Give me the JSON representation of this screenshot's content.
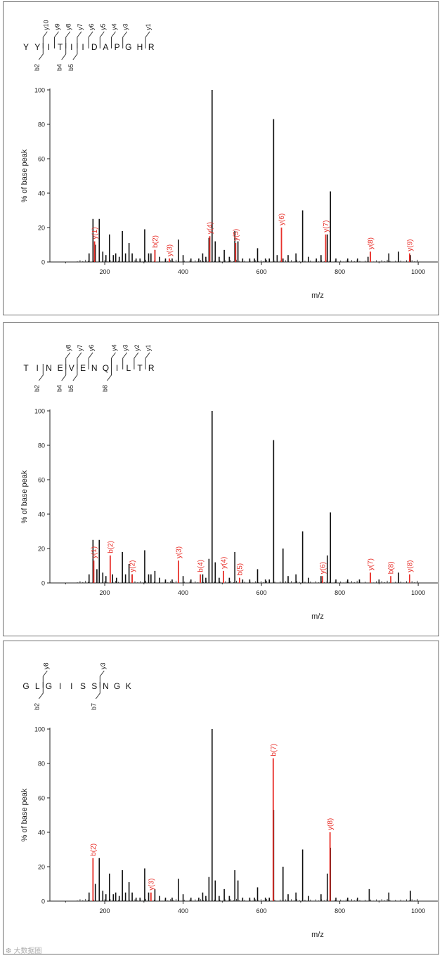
{
  "chart_data": [
    {
      "type": "bar",
      "peptide": "YYITIIDAPGHR",
      "fragment_annotations": {
        "top": [
          "y10",
          "y9",
          "y8",
          "y7",
          "y6",
          "y5",
          "y4",
          "y3",
          "y1"
        ],
        "bottom": [
          "b2",
          "b4",
          "b5"
        ]
      },
      "xlabel": "m/z",
      "ylabel": "% of base peak",
      "xlim": [
        60,
        1050
      ],
      "ylim": [
        0,
        100
      ],
      "xticks": [
        "200",
        "400",
        "600",
        "800",
        "1000"
      ],
      "yticks": [
        "0",
        "20",
        "40",
        "60",
        "80",
        "100"
      ],
      "black_peaks": [
        [
          160,
          5
        ],
        [
          170,
          25
        ],
        [
          176,
          10
        ],
        [
          186,
          25
        ],
        [
          195,
          6
        ],
        [
          203,
          4
        ],
        [
          212,
          16
        ],
        [
          222,
          4
        ],
        [
          228,
          5
        ],
        [
          237,
          3
        ],
        [
          245,
          18
        ],
        [
          253,
          5
        ],
        [
          262,
          11
        ],
        [
          270,
          5
        ],
        [
          280,
          2
        ],
        [
          290,
          2
        ],
        [
          302,
          19
        ],
        [
          312,
          5
        ],
        [
          318,
          5
        ],
        [
          328,
          7
        ],
        [
          340,
          3
        ],
        [
          355,
          2
        ],
        [
          372,
          2
        ],
        [
          388,
          13
        ],
        [
          400,
          4
        ],
        [
          420,
          2
        ],
        [
          440,
          2
        ],
        [
          450,
          5
        ],
        [
          458,
          3
        ],
        [
          466,
          14
        ],
        [
          474,
          100
        ],
        [
          482,
          12
        ],
        [
          492,
          3
        ],
        [
          505,
          7
        ],
        [
          518,
          3
        ],
        [
          532,
          18
        ],
        [
          540,
          12
        ],
        [
          552,
          2
        ],
        [
          570,
          2
        ],
        [
          582,
          2
        ],
        [
          590,
          8
        ],
        [
          610,
          2
        ],
        [
          620,
          2
        ],
        [
          631,
          83
        ],
        [
          640,
          4
        ],
        [
          655,
          2
        ],
        [
          668,
          4
        ],
        [
          688,
          5
        ],
        [
          705,
          30
        ],
        [
          720,
          3
        ],
        [
          740,
          2
        ],
        [
          752,
          4
        ],
        [
          768,
          16
        ],
        [
          776,
          41
        ],
        [
          790,
          2
        ],
        [
          820,
          2
        ],
        [
          845,
          2
        ],
        [
          872,
          3
        ],
        [
          925,
          5
        ],
        [
          950,
          6
        ],
        [
          980,
          4
        ]
      ],
      "red_peaks": [
        {
          "x": 174,
          "y": 12,
          "label": "y(1)"
        },
        {
          "x": 328,
          "y": 7,
          "label": "b(2)"
        },
        {
          "x": 365,
          "y": 2,
          "label": "y(3)"
        },
        {
          "x": 468,
          "y": 15,
          "label": "y(4)"
        },
        {
          "x": 534,
          "y": 11,
          "label": "y(5)"
        },
        {
          "x": 651,
          "y": 20,
          "label": "y(6)"
        },
        {
          "x": 764,
          "y": 16,
          "label": "y(7)"
        },
        {
          "x": 878,
          "y": 6,
          "label": "y(8)"
        },
        {
          "x": 978,
          "y": 5,
          "label": "y(9)"
        }
      ]
    },
    {
      "type": "bar",
      "peptide": "TINEVENQILTR",
      "fragment_annotations": {
        "top": [
          "y8",
          "y7",
          "y6",
          "y4",
          "y3",
          "y2",
          "y1"
        ],
        "bottom": [
          "b2",
          "b4",
          "b5",
          "b8"
        ]
      },
      "xlabel": "m/z",
      "ylabel": "% of base peak",
      "xlim": [
        60,
        1050
      ],
      "ylim": [
        0,
        100
      ],
      "xticks": [
        "200",
        "400",
        "600",
        "800",
        "1000"
      ],
      "yticks": [
        "0",
        "20",
        "40",
        "60",
        "80",
        "100"
      ],
      "black_peaks": [
        [
          160,
          5
        ],
        [
          170,
          25
        ],
        [
          180,
          8
        ],
        [
          186,
          25
        ],
        [
          195,
          6
        ],
        [
          203,
          4
        ],
        [
          220,
          5
        ],
        [
          230,
          3
        ],
        [
          245,
          18
        ],
        [
          253,
          5
        ],
        [
          262,
          11
        ],
        [
          270,
          5
        ],
        [
          302,
          19
        ],
        [
          312,
          5
        ],
        [
          318,
          5
        ],
        [
          328,
          7
        ],
        [
          340,
          3
        ],
        [
          355,
          2
        ],
        [
          372,
          2
        ],
        [
          400,
          4
        ],
        [
          420,
          2
        ],
        [
          450,
          5
        ],
        [
          458,
          3
        ],
        [
          466,
          14
        ],
        [
          474,
          100
        ],
        [
          482,
          12
        ],
        [
          492,
          3
        ],
        [
          518,
          3
        ],
        [
          532,
          18
        ],
        [
          552,
          2
        ],
        [
          570,
          2
        ],
        [
          590,
          8
        ],
        [
          610,
          2
        ],
        [
          620,
          2
        ],
        [
          631,
          83
        ],
        [
          655,
          20
        ],
        [
          668,
          4
        ],
        [
          688,
          5
        ],
        [
          705,
          30
        ],
        [
          720,
          3
        ],
        [
          752,
          4
        ],
        [
          768,
          16
        ],
        [
          776,
          41
        ],
        [
          790,
          2
        ],
        [
          820,
          2
        ],
        [
          850,
          2
        ],
        [
          900,
          2
        ],
        [
          950,
          6
        ]
      ],
      "red_peaks": [
        {
          "x": 172,
          "y": 13,
          "label": "y(1)"
        },
        {
          "x": 214,
          "y": 16,
          "label": "b(2)"
        },
        {
          "x": 270,
          "y": 5,
          "label": "y(2)"
        },
        {
          "x": 388,
          "y": 13,
          "label": "y(3)"
        },
        {
          "x": 444,
          "y": 5,
          "label": "b(4)"
        },
        {
          "x": 503,
          "y": 7,
          "label": "y(4)"
        },
        {
          "x": 544,
          "y": 3,
          "label": "b(5)"
        },
        {
          "x": 756,
          "y": 4,
          "label": "y(6)"
        },
        {
          "x": 878,
          "y": 6,
          "label": "y(7)"
        },
        {
          "x": 930,
          "y": 4,
          "label": "b(8)"
        },
        {
          "x": 978,
          "y": 5,
          "label": "y(8)"
        }
      ]
    },
    {
      "type": "bar",
      "peptide": "GLGIISSNGK",
      "fragment_annotations": {
        "top": [
          "y8",
          "y3"
        ],
        "bottom": [
          "b2",
          "b7"
        ]
      },
      "xlabel": "m/z",
      "ylabel": "% of base peak",
      "xlim": [
        60,
        1050
      ],
      "ylim": [
        0,
        100
      ],
      "xticks": [
        "200",
        "400",
        "600",
        "800",
        "1000"
      ],
      "yticks": [
        "0",
        "20",
        "40",
        "60",
        "80",
        "100"
      ],
      "black_peaks": [
        [
          160,
          5
        ],
        [
          176,
          10
        ],
        [
          186,
          25
        ],
        [
          195,
          6
        ],
        [
          203,
          4
        ],
        [
          212,
          16
        ],
        [
          222,
          4
        ],
        [
          228,
          5
        ],
        [
          237,
          3
        ],
        [
          245,
          18
        ],
        [
          253,
          5
        ],
        [
          262,
          11
        ],
        [
          270,
          5
        ],
        [
          280,
          2
        ],
        [
          290,
          2
        ],
        [
          302,
          19
        ],
        [
          312,
          5
        ],
        [
          328,
          7
        ],
        [
          340,
          3
        ],
        [
          355,
          2
        ],
        [
          372,
          2
        ],
        [
          388,
          13
        ],
        [
          400,
          4
        ],
        [
          420,
          2
        ],
        [
          440,
          2
        ],
        [
          450,
          5
        ],
        [
          458,
          3
        ],
        [
          466,
          14
        ],
        [
          474,
          100
        ],
        [
          482,
          12
        ],
        [
          492,
          3
        ],
        [
          505,
          7
        ],
        [
          518,
          3
        ],
        [
          532,
          18
        ],
        [
          540,
          12
        ],
        [
          552,
          2
        ],
        [
          570,
          2
        ],
        [
          582,
          2
        ],
        [
          590,
          8
        ],
        [
          610,
          2
        ],
        [
          620,
          2
        ],
        [
          631,
          53
        ],
        [
          655,
          20
        ],
        [
          668,
          4
        ],
        [
          688,
          5
        ],
        [
          705,
          30
        ],
        [
          720,
          3
        ],
        [
          752,
          4
        ],
        [
          768,
          16
        ],
        [
          776,
          31
        ],
        [
          790,
          2
        ],
        [
          820,
          2
        ],
        [
          845,
          2
        ],
        [
          875,
          7
        ],
        [
          925,
          5
        ],
        [
          980,
          6
        ]
      ],
      "red_peaks": [
        {
          "x": 170,
          "y": 25,
          "label": "b(2)"
        },
        {
          "x": 318,
          "y": 5,
          "label": "y(3)"
        },
        {
          "x": 630,
          "y": 83,
          "label": "b(7)"
        },
        {
          "x": 775,
          "y": 40,
          "label": "y(8)"
        }
      ]
    }
  ],
  "watermark": "❆ 大数据圈"
}
